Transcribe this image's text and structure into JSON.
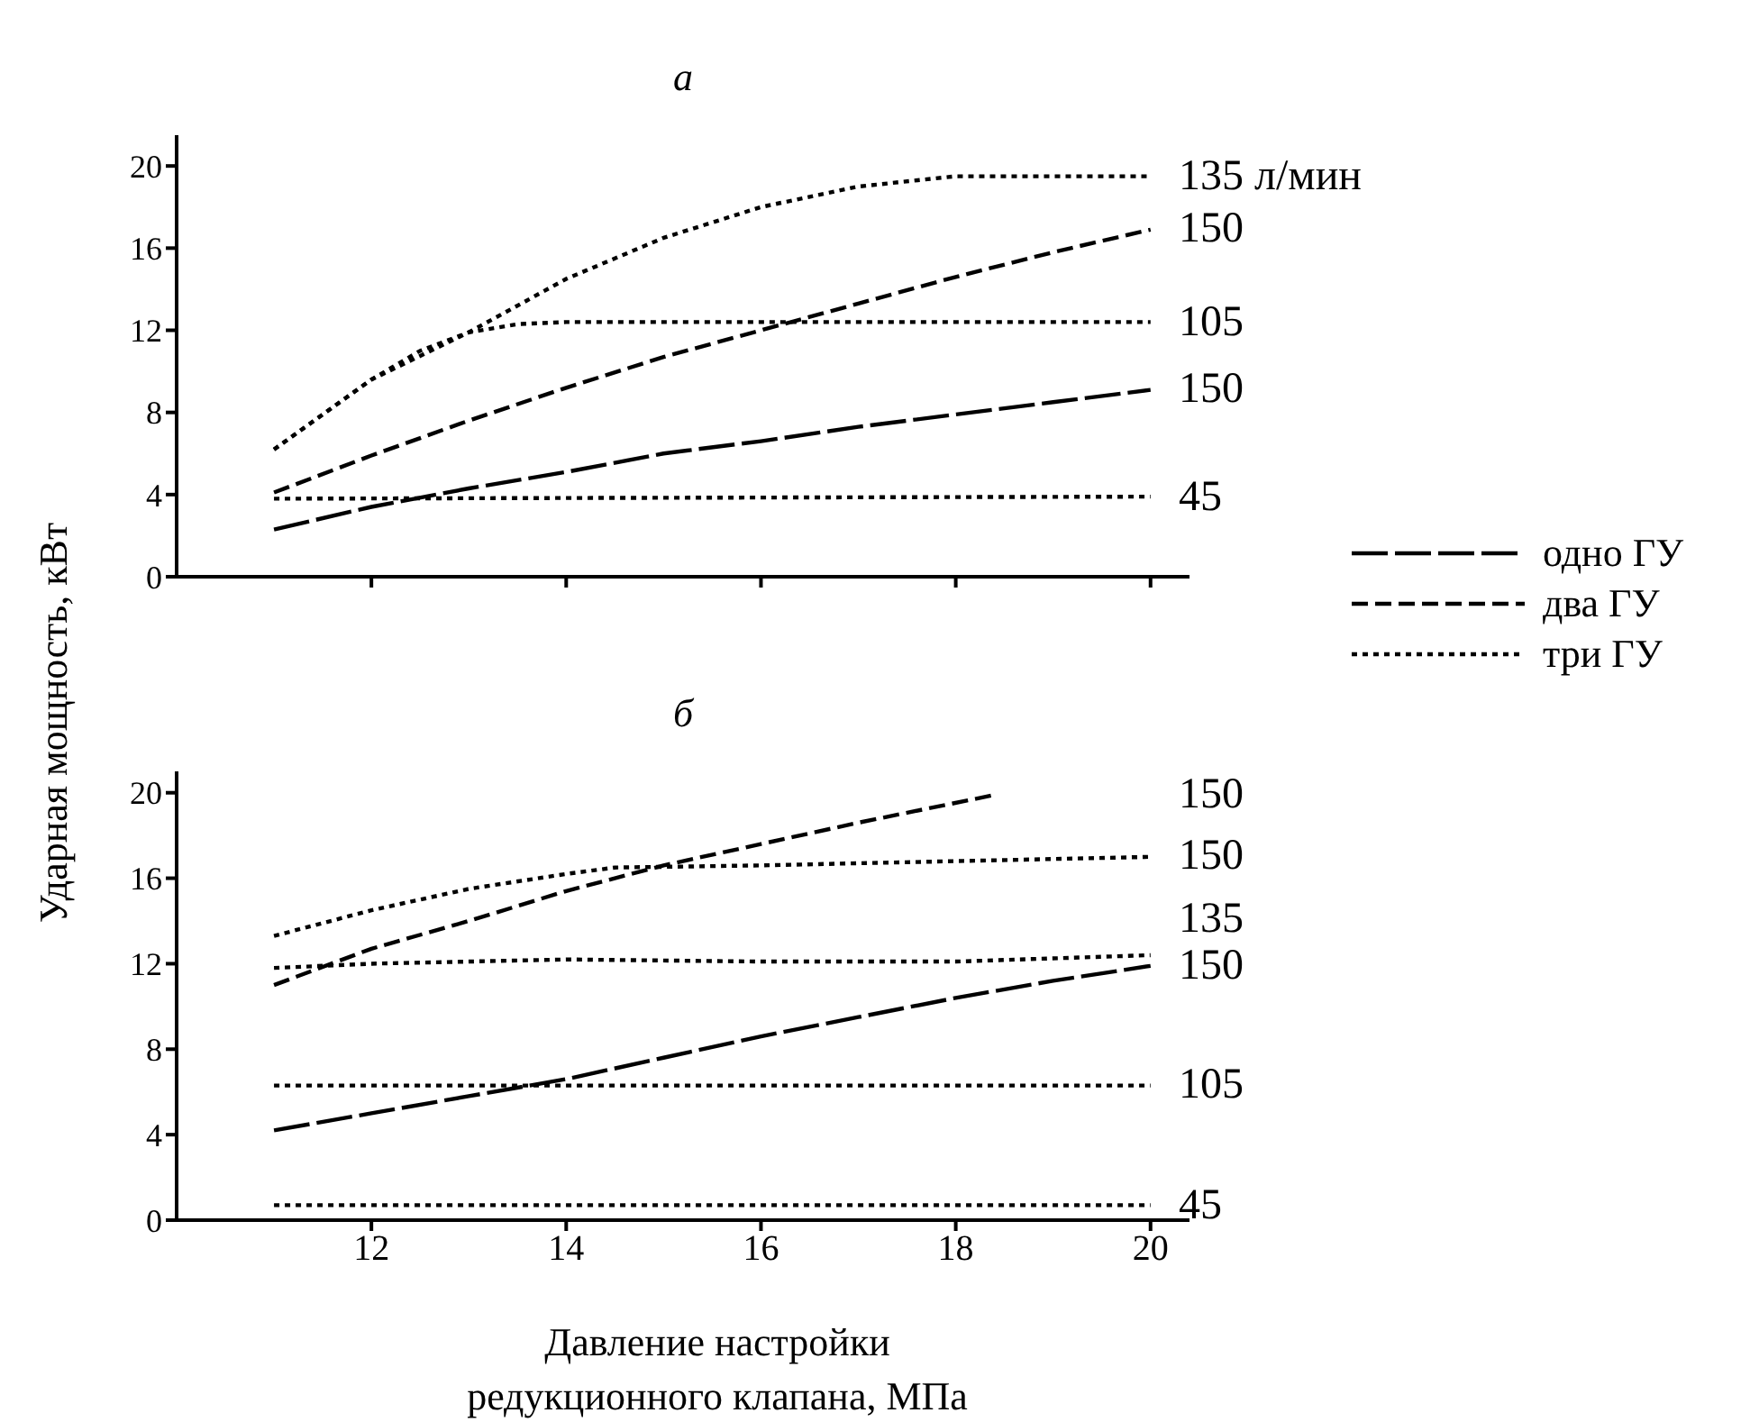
{
  "chart_data": [
    {
      "type": "line",
      "title": "а",
      "ylabel": "Ударная мощность, кВт",
      "xlim": [
        10,
        20.4
      ],
      "ylim": [
        0,
        21.5
      ],
      "yticks": [
        0,
        4,
        8,
        12,
        16,
        20
      ],
      "xticks": [
        {
          "value": 12,
          "label": null
        },
        {
          "value": 14,
          "label": null
        },
        {
          "value": 16,
          "label": null
        },
        {
          "value": 18,
          "label": null
        },
        {
          "value": 20,
          "label": null
        }
      ],
      "tick_labels": "y",
      "grid": false,
      "legend": "right",
      "marker": "none",
      "series": [
        {
          "name": "одно ГУ",
          "color": "#000000",
          "line_style": "dashed",
          "x": [
            11,
            12,
            13,
            14,
            15,
            16,
            17,
            18,
            19,
            20
          ],
          "values": [
            2.3,
            3.4,
            4.3,
            5.1,
            6.0,
            6.6,
            7.3,
            7.9,
            8.5,
            9.1
          ]
        },
        {
          "name": "два ГУ",
          "color": "#000000",
          "line_style": "dashed",
          "x": [
            11,
            12,
            13,
            14,
            15,
            16,
            17,
            18,
            19,
            20
          ],
          "values": [
            4.1,
            5.9,
            7.6,
            9.2,
            10.7,
            12.0,
            13.3,
            14.6,
            15.8,
            16.9
          ]
        },
        {
          "name": "три ГУ",
          "color": "#000000",
          "line_style": "dotted",
          "x": [
            11,
            12,
            13,
            14,
            15,
            16,
            17,
            18,
            20
          ],
          "values": [
            6.2,
            9.6,
            11.9,
            14.5,
            16.5,
            18.0,
            19.0,
            19.5,
            19.5
          ]
        },
        {
          "color": "#000000",
          "line_style": "dotted",
          "x": [
            11,
            12,
            12.5,
            13,
            13.5,
            14,
            20
          ],
          "values": [
            6.2,
            9.6,
            11.0,
            11.9,
            12.3,
            12.4,
            12.4
          ]
        },
        {
          "color": "#000000",
          "line_style": "dotted",
          "x": [
            11,
            20
          ],
          "values": [
            3.8,
            3.9
          ]
        }
      ],
      "annotations": [
        "150",
        "150",
        "135 л/мин",
        "105",
        "45"
      ]
    },
    {
      "type": "line",
      "title": "б",
      "xlabel": "Давление настройки редукционного клапана, МПа",
      "xlim": [
        10,
        20.4
      ],
      "ylim": [
        0,
        21
      ],
      "yticks": [
        0,
        4,
        8,
        12,
        16,
        20
      ],
      "xticks": [
        12,
        14,
        16,
        18,
        20
      ],
      "grid": false,
      "marker": "none",
      "series": [
        {
          "name": "одно ГУ",
          "color": "#000000",
          "line_style": "dashed",
          "x": [
            11,
            12,
            13,
            14,
            15,
            16,
            17,
            18,
            19,
            20
          ],
          "values": [
            4.2,
            5.0,
            5.8,
            6.6,
            7.6,
            8.6,
            9.5,
            10.4,
            11.2,
            11.9
          ]
        },
        {
          "name": "два ГУ",
          "color": "#000000",
          "line_style": "dashed",
          "x": [
            11,
            12,
            13,
            14,
            15,
            16,
            17,
            18.4
          ],
          "values": [
            11.0,
            12.7,
            14.0,
            15.4,
            16.6,
            17.6,
            18.6,
            19.9
          ]
        },
        {
          "name": "три ГУ",
          "color": "#000000",
          "line_style": "dotted",
          "x": [
            11,
            12,
            13,
            14,
            14.5,
            16,
            18,
            20
          ],
          "values": [
            13.3,
            14.5,
            15.5,
            16.2,
            16.5,
            16.6,
            16.8,
            17.0
          ]
        },
        {
          "color": "#000000",
          "line_style": "dotted",
          "x": [
            11,
            12,
            14,
            16,
            18,
            20
          ],
          "values": [
            11.8,
            12.0,
            12.2,
            12.1,
            12.1,
            12.4
          ]
        },
        {
          "color": "#000000",
          "line_style": "dotted",
          "x": [
            11,
            20
          ],
          "values": [
            6.3,
            6.3
          ]
        },
        {
          "color": "#000000",
          "line_style": "dotted",
          "x": [
            11,
            20
          ],
          "values": [
            0.7,
            0.7
          ]
        }
      ],
      "annotations": [
        "150",
        "150",
        "150",
        "135",
        "105",
        "45"
      ]
    }
  ]
}
